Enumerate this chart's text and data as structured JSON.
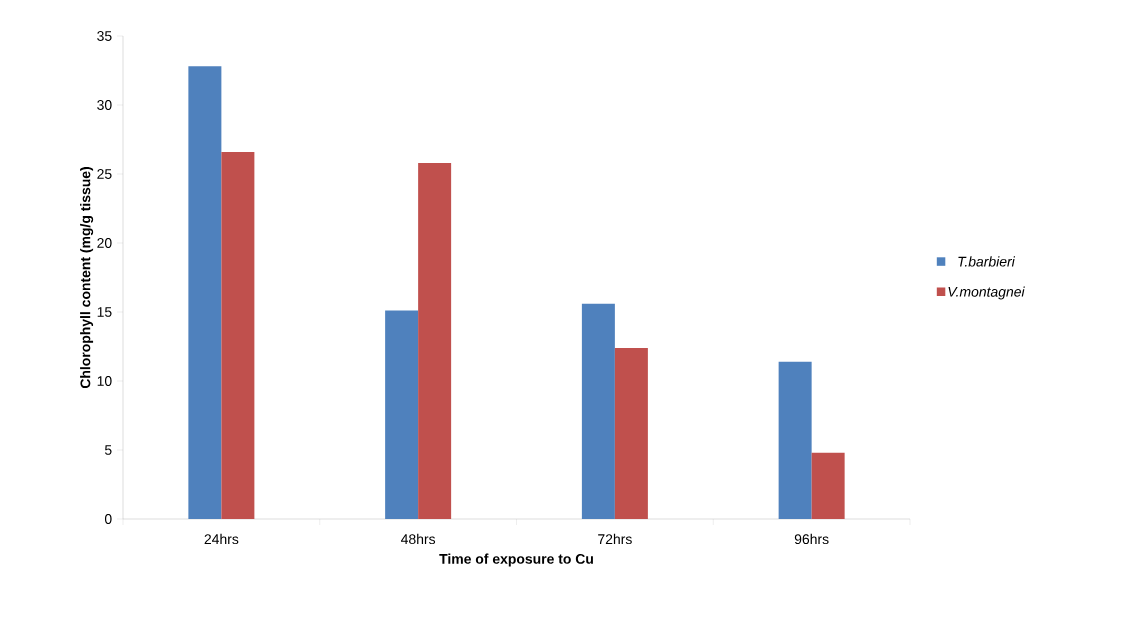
{
  "chart_data": {
    "type": "bar",
    "xlabel": "Time of exposure to Cu",
    "ylabel": "Chlorophyll content (mg/g tissue)",
    "categories": [
      "24hrs",
      "48hrs",
      "72hrs",
      "96hrs"
    ],
    "series": [
      {
        "name": "T.barbieri",
        "color": "#4f81bd",
        "values": [
          32.8,
          15.1,
          15.6,
          11.4
        ]
      },
      {
        "name": "V.montagnei",
        "color": "#c0504d",
        "values": [
          26.6,
          25.8,
          12.4,
          4.8
        ]
      }
    ],
    "ylim": [
      0,
      35
    ],
    "yticks": [
      0,
      5,
      10,
      15,
      20,
      25,
      30,
      35
    ],
    "grid": false,
    "legend": "right"
  }
}
